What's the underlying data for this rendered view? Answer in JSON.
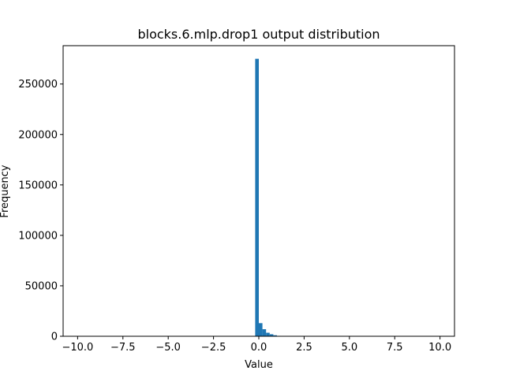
{
  "chart_data": {
    "type": "bar",
    "title": "blocks.6.mlp.drop1 output distribution",
    "xlabel": "Value",
    "ylabel": "Frequency",
    "xlim": [
      -10.8,
      10.8
    ],
    "ylim": [
      0,
      288000
    ],
    "x_ticks": [
      -10.0,
      -7.5,
      -5.0,
      -2.5,
      0.0,
      2.5,
      5.0,
      7.5,
      10.0
    ],
    "x_tick_labels": [
      "−10.0",
      "−7.5",
      "−5.0",
      "−2.5",
      "0.0",
      "2.5",
      "5.0",
      "7.5",
      "10.0"
    ],
    "y_ticks": [
      0,
      50000,
      100000,
      150000,
      200000,
      250000
    ],
    "y_tick_labels": [
      "0",
      "50000",
      "100000",
      "150000",
      "200000",
      "250000"
    ],
    "bin_width": 0.2,
    "bins": [
      {
        "x0": -0.2,
        "value": 275000
      },
      {
        "x0": 0.0,
        "value": 13000
      },
      {
        "x0": 0.2,
        "value": 7000
      },
      {
        "x0": 0.4,
        "value": 3500
      },
      {
        "x0": 0.6,
        "value": 2000
      },
      {
        "x0": 0.8,
        "value": 1000
      },
      {
        "x0": 1.0,
        "value": 400
      },
      {
        "x0": 1.2,
        "value": 150
      }
    ],
    "bar_color": "#1f77b4",
    "grid": false
  }
}
